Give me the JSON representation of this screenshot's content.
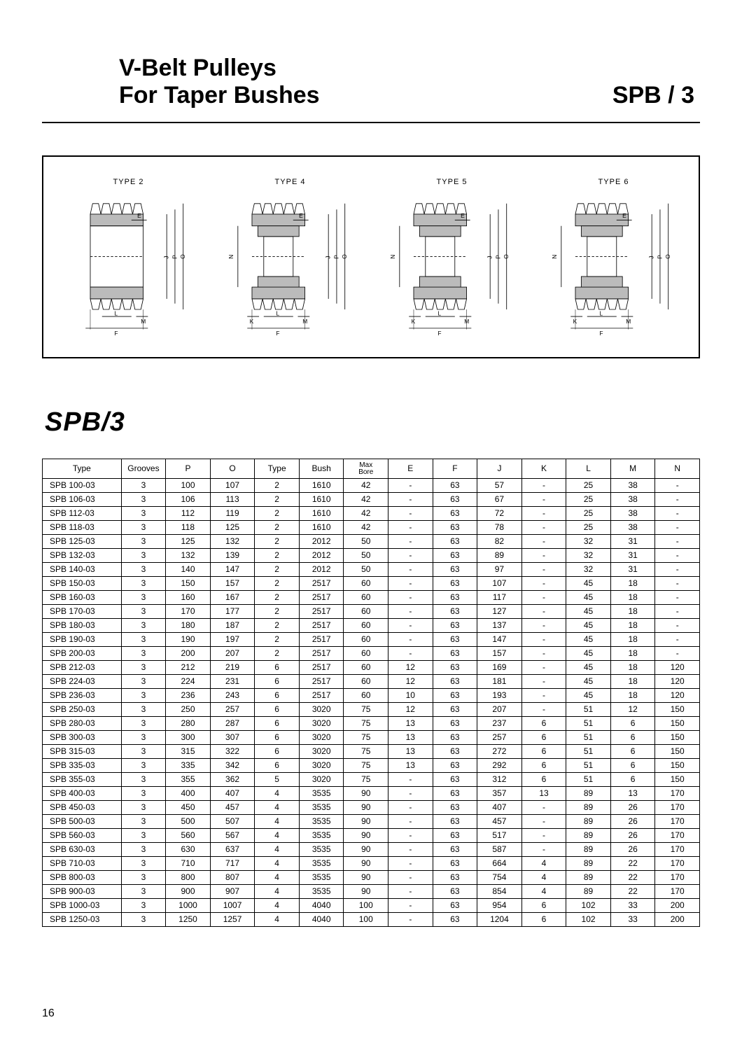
{
  "header": {
    "title_line1": "V-Belt  Pulleys",
    "title_line2": "For Taper Bushes",
    "code": "SPB / 3"
  },
  "diagrams": {
    "labels": [
      "TYPE 2",
      "TYPE 4",
      "TYPE 5",
      "TYPE 6"
    ],
    "letter_E": "E",
    "letter_J": "J",
    "letter_P": "P",
    "letter_O": "O",
    "letter_N": "N",
    "letter_L": "L",
    "letter_M": "M",
    "letter_K": "K",
    "letter_F": "F"
  },
  "section_title": "SPB/3",
  "table": {
    "columns": [
      "Type",
      "Grooves",
      "P",
      "O",
      "Type",
      "Bush",
      "Max\nBore",
      "E",
      "F",
      "J",
      "K",
      "L",
      "M",
      "N"
    ],
    "rows": [
      [
        "SPB  100-03",
        "3",
        "100",
        "107",
        "2",
        "1610",
        "42",
        "-",
        "63",
        "57",
        "-",
        "25",
        "38",
        "-"
      ],
      [
        "SPB  106-03",
        "3",
        "106",
        "113",
        "2",
        "1610",
        "42",
        "-",
        "63",
        "67",
        "-",
        "25",
        "38",
        "-"
      ],
      [
        "SPB  112-03",
        "3",
        "112",
        "119",
        "2",
        "1610",
        "42",
        "-",
        "63",
        "72",
        "-",
        "25",
        "38",
        "-"
      ],
      [
        "SPB  118-03",
        "3",
        "118",
        "125",
        "2",
        "1610",
        "42",
        "-",
        "63",
        "78",
        "-",
        "25",
        "38",
        "-"
      ],
      [
        "SPB  125-03",
        "3",
        "125",
        "132",
        "2",
        "2012",
        "50",
        "-",
        "63",
        "82",
        "-",
        "32",
        "31",
        "-"
      ],
      [
        "SPB  132-03",
        "3",
        "132",
        "139",
        "2",
        "2012",
        "50",
        "-",
        "63",
        "89",
        "-",
        "32",
        "31",
        "-"
      ],
      [
        "SPB  140-03",
        "3",
        "140",
        "147",
        "2",
        "2012",
        "50",
        "-",
        "63",
        "97",
        "-",
        "32",
        "31",
        "-"
      ],
      [
        "SPB  150-03",
        "3",
        "150",
        "157",
        "2",
        "2517",
        "60",
        "-",
        "63",
        "107",
        "-",
        "45",
        "18",
        "-"
      ],
      [
        "SPB  160-03",
        "3",
        "160",
        "167",
        "2",
        "2517",
        "60",
        "-",
        "63",
        "117",
        "-",
        "45",
        "18",
        "-"
      ],
      [
        "SPB  170-03",
        "3",
        "170",
        "177",
        "2",
        "2517",
        "60",
        "-",
        "63",
        "127",
        "-",
        "45",
        "18",
        "-"
      ],
      [
        "SPB  180-03",
        "3",
        "180",
        "187",
        "2",
        "2517",
        "60",
        "-",
        "63",
        "137",
        "-",
        "45",
        "18",
        "-"
      ],
      [
        "SPB  190-03",
        "3",
        "190",
        "197",
        "2",
        "2517",
        "60",
        "-",
        "63",
        "147",
        "-",
        "45",
        "18",
        "-"
      ],
      [
        "SPB  200-03",
        "3",
        "200",
        "207",
        "2",
        "2517",
        "60",
        "-",
        "63",
        "157",
        "-",
        "45",
        "18",
        "-"
      ],
      [
        "SPB  212-03",
        "3",
        "212",
        "219",
        "6",
        "2517",
        "60",
        "12",
        "63",
        "169",
        "-",
        "45",
        "18",
        "120"
      ],
      [
        "SPB  224-03",
        "3",
        "224",
        "231",
        "6",
        "2517",
        "60",
        "12",
        "63",
        "181",
        "-",
        "45",
        "18",
        "120"
      ],
      [
        "SPB  236-03",
        "3",
        "236",
        "243",
        "6",
        "2517",
        "60",
        "10",
        "63",
        "193",
        "-",
        "45",
        "18",
        "120"
      ],
      [
        "SPB  250-03",
        "3",
        "250",
        "257",
        "6",
        "3020",
        "75",
        "12",
        "63",
        "207",
        "-",
        "51",
        "12",
        "150"
      ],
      [
        "SPB  280-03",
        "3",
        "280",
        "287",
        "6",
        "3020",
        "75",
        "13",
        "63",
        "237",
        "6",
        "51",
        "6",
        "150"
      ],
      [
        "SPB  300-03",
        "3",
        "300",
        "307",
        "6",
        "3020",
        "75",
        "13",
        "63",
        "257",
        "6",
        "51",
        "6",
        "150"
      ],
      [
        "SPB  315-03",
        "3",
        "315",
        "322",
        "6",
        "3020",
        "75",
        "13",
        "63",
        "272",
        "6",
        "51",
        "6",
        "150"
      ],
      [
        "SPB  335-03",
        "3",
        "335",
        "342",
        "6",
        "3020",
        "75",
        "13",
        "63",
        "292",
        "6",
        "51",
        "6",
        "150"
      ],
      [
        "SPB  355-03",
        "3",
        "355",
        "362",
        "5",
        "3020",
        "75",
        "-",
        "63",
        "312",
        "6",
        "51",
        "6",
        "150"
      ],
      [
        "SPB  400-03",
        "3",
        "400",
        "407",
        "4",
        "3535",
        "90",
        "-",
        "63",
        "357",
        "13",
        "89",
        "13",
        "170"
      ],
      [
        "SPB  450-03",
        "3",
        "450",
        "457",
        "4",
        "3535",
        "90",
        "-",
        "63",
        "407",
        "-",
        "89",
        "26",
        "170"
      ],
      [
        "SPB  500-03",
        "3",
        "500",
        "507",
        "4",
        "3535",
        "90",
        "-",
        "63",
        "457",
        "-",
        "89",
        "26",
        "170"
      ],
      [
        "SPB  560-03",
        "3",
        "560",
        "567",
        "4",
        "3535",
        "90",
        "-",
        "63",
        "517",
        "-",
        "89",
        "26",
        "170"
      ],
      [
        "SPB  630-03",
        "3",
        "630",
        "637",
        "4",
        "3535",
        "90",
        "-",
        "63",
        "587",
        "-",
        "89",
        "26",
        "170"
      ],
      [
        "SPB  710-03",
        "3",
        "710",
        "717",
        "4",
        "3535",
        "90",
        "-",
        "63",
        "664",
        "4",
        "89",
        "22",
        "170"
      ],
      [
        "SPB  800-03",
        "3",
        "800",
        "807",
        "4",
        "3535",
        "90",
        "-",
        "63",
        "754",
        "4",
        "89",
        "22",
        "170"
      ],
      [
        "SPB  900-03",
        "3",
        "900",
        "907",
        "4",
        "3535",
        "90",
        "-",
        "63",
        "854",
        "4",
        "89",
        "22",
        "170"
      ],
      [
        "SPB  1000-03",
        "3",
        "1000",
        "1007",
        "4",
        "4040",
        "100",
        "-",
        "63",
        "954",
        "6",
        "102",
        "33",
        "200"
      ],
      [
        "SPB  1250-03",
        "3",
        "1250",
        "1257",
        "4",
        "4040",
        "100",
        "-",
        "63",
        "1204",
        "6",
        "102",
        "33",
        "200"
      ]
    ]
  },
  "page_number": "16",
  "style": {
    "font_main": "Arial",
    "text_color": "#000000",
    "bg_color": "#ffffff",
    "border_color": "#000000",
    "hatch_fill": "#bbbbbb",
    "title_fontsize": 34,
    "section_fontsize": 38,
    "table_fontsize": 12,
    "diagram_label_fontsize": 11
  }
}
